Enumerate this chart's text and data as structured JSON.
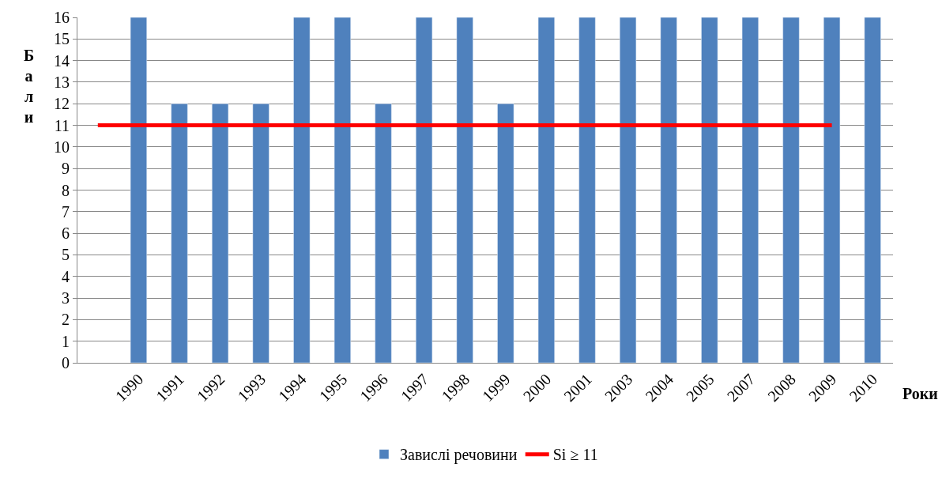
{
  "chart_data": {
    "type": "bar",
    "xlabel": "Роки",
    "ylabel": "Бали",
    "categories": [
      null,
      "1990",
      "1991",
      "1992",
      "1993",
      "1994",
      "1995",
      "1996",
      "1997",
      "1998",
      "1999",
      "2000",
      "2001",
      "2003",
      "2004",
      "2005",
      "2007",
      "2008",
      "2009",
      "2010"
    ],
    "series": [
      {
        "name": "Завислі речовини",
        "color": "#4f81bd",
        "values": [
          null,
          16,
          12,
          12,
          12,
          16,
          16,
          12,
          16,
          16,
          12,
          16,
          16,
          16,
          16,
          16,
          16,
          16,
          16,
          16
        ]
      },
      {
        "name": "Si ≥ 11",
        "type": "line",
        "color": "#ff0000",
        "values": [
          11,
          11,
          11,
          11,
          11,
          11,
          11,
          11,
          11,
          11,
          11,
          11,
          11,
          11,
          11,
          11,
          11,
          11,
          11,
          null
        ]
      }
    ],
    "ylim": [
      0,
      16
    ],
    "yticks": [
      0,
      1,
      2,
      3,
      4,
      5,
      6,
      7,
      8,
      9,
      10,
      11,
      12,
      13,
      14,
      15,
      16
    ],
    "grid": "y",
    "legend": "bottom",
    "marker": "none"
  }
}
